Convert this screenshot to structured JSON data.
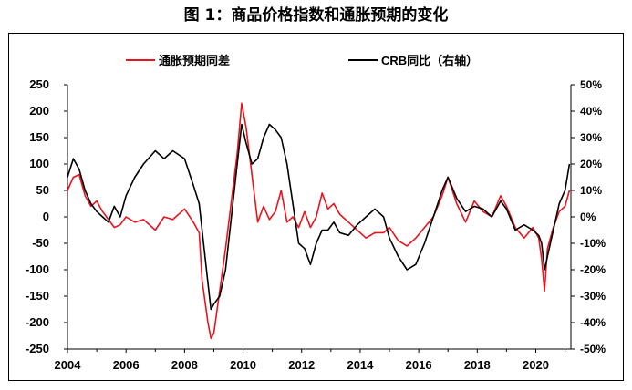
{
  "chart_data": {
    "type": "line",
    "title": "图 1：商品价格指数和通胀预期的变化",
    "xlim": [
      2004,
      2021.2
    ],
    "x_ticks": [
      "2004",
      "2006",
      "2008",
      "2010",
      "2012",
      "2014",
      "2016",
      "2018",
      "2020"
    ],
    "y_left": {
      "lim": [
        -250,
        250
      ],
      "ticks": [
        "250",
        "200",
        "150",
        "100",
        "50",
        "0",
        "-50",
        "-100",
        "-150",
        "-200",
        "-250"
      ]
    },
    "y_right": {
      "lim": [
        -50,
        50
      ],
      "unit": "%",
      "ticks": [
        "50%",
        "40%",
        "30%",
        "20%",
        "10%",
        "0%",
        "-10%",
        "-20%",
        "-30%",
        "-40%",
        "-50%"
      ]
    },
    "legend": {
      "position": "top-center"
    },
    "series": [
      {
        "name": "通胀预期同差",
        "color": "#e8141e",
        "axis": "left",
        "x": [
          2004.0,
          2004.2,
          2004.4,
          2004.6,
          2004.8,
          2005.0,
          2005.2,
          2005.4,
          2005.6,
          2005.8,
          2006.0,
          2006.3,
          2006.6,
          2007.0,
          2007.3,
          2007.6,
          2008.0,
          2008.3,
          2008.5,
          2008.6,
          2008.8,
          2008.9,
          2009.0,
          2009.2,
          2009.4,
          2009.6,
          2009.8,
          2009.95,
          2010.1,
          2010.3,
          2010.5,
          2010.7,
          2010.9,
          2011.1,
          2011.3,
          2011.5,
          2011.7,
          2011.9,
          2012.1,
          2012.3,
          2012.5,
          2012.7,
          2012.9,
          2013.1,
          2013.3,
          2013.6,
          2013.9,
          2014.2,
          2014.5,
          2014.8,
          2015.0,
          2015.3,
          2015.6,
          2015.9,
          2016.2,
          2016.5,
          2016.8,
          2017.0,
          2017.3,
          2017.6,
          2017.9,
          2018.2,
          2018.5,
          2018.8,
          2019.0,
          2019.3,
          2019.6,
          2019.9,
          2020.1,
          2020.2,
          2020.3,
          2020.4,
          2020.6,
          2020.8,
          2021.0,
          2021.15
        ],
        "values": [
          50,
          75,
          80,
          40,
          20,
          30,
          10,
          -5,
          -20,
          -15,
          0,
          -10,
          -5,
          -25,
          0,
          -5,
          15,
          -10,
          -30,
          -120,
          -200,
          -230,
          -220,
          -140,
          -60,
          30,
          120,
          215,
          170,
          80,
          -10,
          20,
          -5,
          10,
          50,
          -10,
          0,
          -20,
          10,
          -20,
          0,
          45,
          15,
          25,
          5,
          -10,
          -25,
          -40,
          -30,
          -30,
          -20,
          -45,
          -55,
          -40,
          -20,
          0,
          40,
          75,
          25,
          -10,
          30,
          10,
          0,
          40,
          20,
          -20,
          -40,
          -20,
          -40,
          -80,
          -140,
          -60,
          -20,
          10,
          20,
          50
        ]
      },
      {
        "name": "CRB同比（右轴）",
        "color": "#000000",
        "axis": "right",
        "x": [
          2004.0,
          2004.2,
          2004.4,
          2004.6,
          2004.8,
          2005.0,
          2005.2,
          2005.4,
          2005.6,
          2005.8,
          2006.0,
          2006.3,
          2006.6,
          2007.0,
          2007.3,
          2007.6,
          2008.0,
          2008.3,
          2008.5,
          2008.6,
          2008.8,
          2008.9,
          2009.0,
          2009.2,
          2009.4,
          2009.6,
          2009.8,
          2009.95,
          2010.1,
          2010.3,
          2010.5,
          2010.7,
          2010.9,
          2011.1,
          2011.3,
          2011.5,
          2011.7,
          2011.9,
          2012.1,
          2012.3,
          2012.5,
          2012.7,
          2012.9,
          2013.1,
          2013.3,
          2013.6,
          2013.9,
          2014.2,
          2014.5,
          2014.8,
          2015.0,
          2015.3,
          2015.6,
          2015.9,
          2016.2,
          2016.5,
          2016.8,
          2017.0,
          2017.3,
          2017.6,
          2017.9,
          2018.2,
          2018.5,
          2018.8,
          2019.0,
          2019.3,
          2019.6,
          2019.9,
          2020.1,
          2020.2,
          2020.3,
          2020.4,
          2020.6,
          2020.8,
          2021.0,
          2021.15
        ],
        "values": [
          15,
          22,
          18,
          10,
          5,
          2,
          0,
          -2,
          4,
          0,
          8,
          15,
          20,
          25,
          22,
          25,
          22,
          12,
          5,
          -5,
          -25,
          -35,
          -33,
          -30,
          -20,
          0,
          20,
          35,
          28,
          20,
          22,
          30,
          35,
          33,
          30,
          20,
          5,
          -10,
          -12,
          -18,
          -10,
          -5,
          -5,
          -2,
          -6,
          -7,
          -3,
          0,
          3,
          0,
          -8,
          -15,
          -20,
          -18,
          -10,
          0,
          10,
          15,
          7,
          2,
          4,
          3,
          0,
          6,
          3,
          -5,
          -3,
          -5,
          -7,
          -10,
          -20,
          -15,
          -5,
          5,
          10,
          20
        ]
      }
    ]
  }
}
